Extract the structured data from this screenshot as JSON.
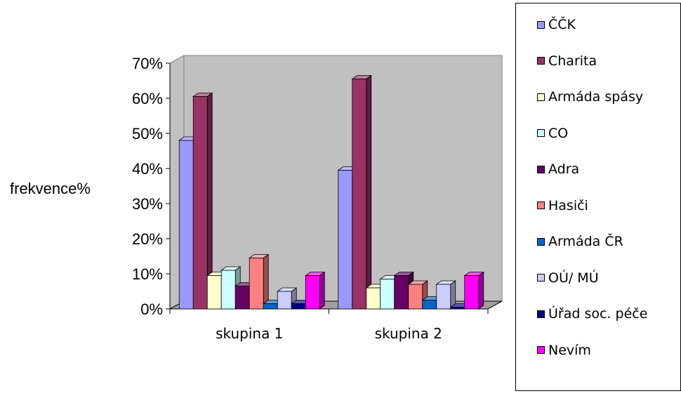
{
  "chart_data": {
    "type": "bar",
    "ylabel": "frekvence%",
    "ylim": [
      0,
      70
    ],
    "yticks": [
      "0%",
      "10%",
      "20%",
      "30%",
      "40%",
      "50%",
      "60%",
      "70%"
    ],
    "categories": [
      "skupina 1",
      "skupina 2"
    ],
    "legend_position": "right",
    "grid": false,
    "series": [
      {
        "name": "ČČK",
        "color": "#9999FF",
        "values": [
          48,
          39.5
        ]
      },
      {
        "name": "Charita",
        "color": "#993366",
        "values": [
          60.5,
          65.5
        ]
      },
      {
        "name": "Armáda spásy",
        "color": "#FFFFCC",
        "values": [
          9.5,
          6
        ]
      },
      {
        "name": "CO",
        "color": "#CCFFFF",
        "values": [
          11,
          8.5
        ]
      },
      {
        "name": "Adra",
        "color": "#660066",
        "values": [
          6.5,
          9.5
        ]
      },
      {
        "name": "Hasiči",
        "color": "#FF8080",
        "values": [
          14.5,
          7
        ]
      },
      {
        "name": "Armáda ČR",
        "color": "#0066CC",
        "values": [
          1.5,
          2.5
        ]
      },
      {
        "name": "OÚ/ MÚ",
        "color": "#CCCCFF",
        "values": [
          5,
          7
        ]
      },
      {
        "name": "Úřad soc. péče",
        "color": "#000080",
        "values": [
          1.5,
          0.5
        ]
      },
      {
        "name": "Nevím",
        "color": "#FF00FF",
        "values": [
          9.5,
          9.5
        ]
      }
    ]
  }
}
